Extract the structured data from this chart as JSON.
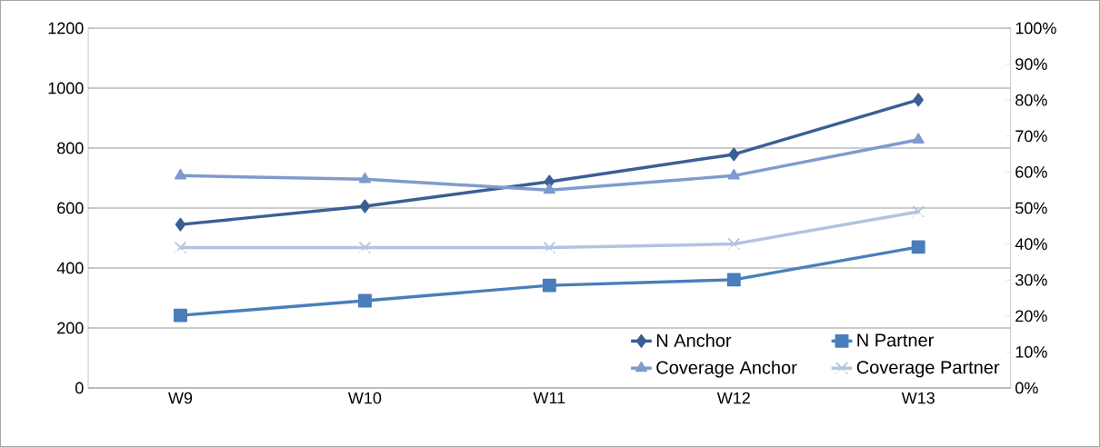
{
  "chart_data": {
    "type": "line",
    "categories": [
      "W9",
      "W10",
      "W11",
      "W12",
      "W13"
    ],
    "series": [
      {
        "name": "N Anchor",
        "color": "#3a5f94",
        "marker": "diamond",
        "values": [
          545,
          606,
          688,
          779,
          961
        ]
      },
      {
        "name": "N Partner",
        "color": "#4a7ebb",
        "marker": "square",
        "values": [
          242,
          291,
          342,
          361,
          470
        ]
      },
      {
        "name": "Coverage Anchor",
        "color": "#7f9bcd",
        "marker": "triangle",
        "axis": "y2",
        "values": [
          59,
          58,
          55,
          59,
          69
        ]
      },
      {
        "name": "Coverage Partner",
        "color": "#b3c3e0",
        "marker": "cross",
        "axis": "y2",
        "values": [
          39,
          39,
          39,
          40,
          49
        ]
      }
    ],
    "ylim": [
      0,
      1200
    ],
    "yticks": [
      0,
      200,
      400,
      600,
      800,
      1000,
      1200
    ],
    "y2lim": [
      0,
      100
    ],
    "y2ticks": [
      {
        "value": 0,
        "label": "0%"
      },
      {
        "value": 10,
        "label": "10%"
      },
      {
        "value": 20,
        "label": "20%"
      },
      {
        "value": 30,
        "label": "30%"
      },
      {
        "value": 40,
        "label": "40%"
      },
      {
        "value": 50,
        "label": "50%"
      },
      {
        "value": 60,
        "label": "60%"
      },
      {
        "value": 70,
        "label": "70%"
      },
      {
        "value": 80,
        "label": "80%"
      },
      {
        "value": 90,
        "label": "90%"
      },
      {
        "value": 100,
        "label": "100%"
      }
    ],
    "grid": "y",
    "legend": "bottom right"
  }
}
